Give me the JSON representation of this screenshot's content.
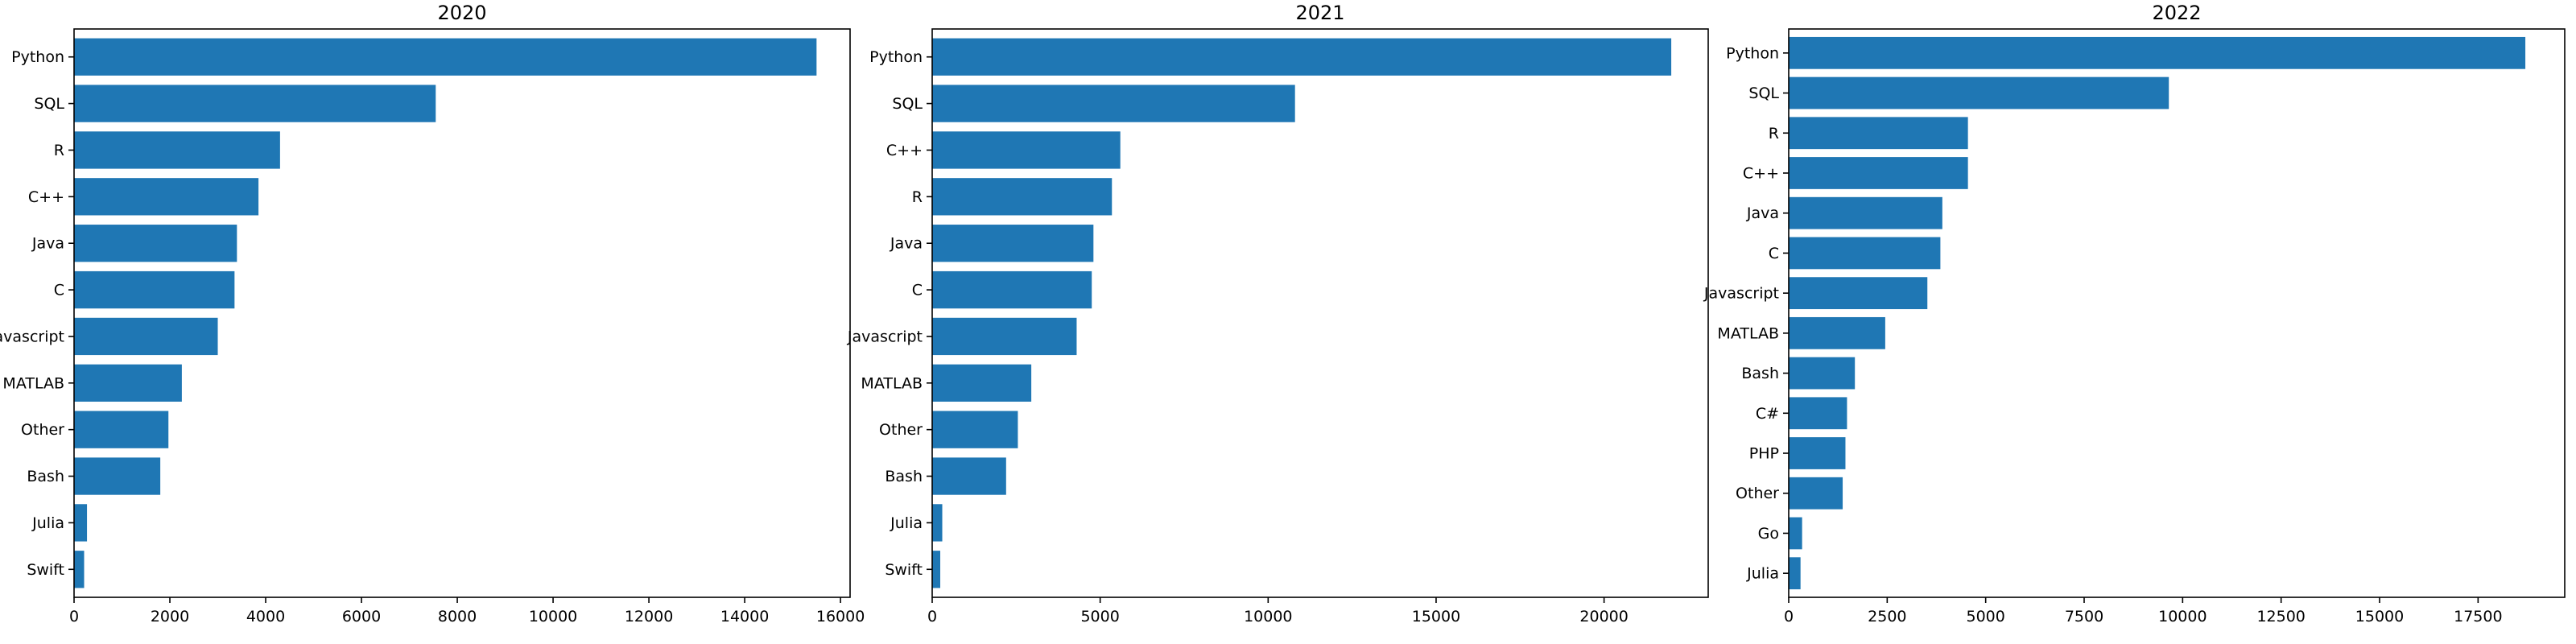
{
  "chart_data": [
    {
      "type": "bar",
      "orientation": "horizontal",
      "title": "2020",
      "categories": [
        "Python",
        "SQL",
        "R",
        "C++",
        "Java",
        "C",
        "Javascript",
        "MATLAB",
        "Other",
        "Bash",
        "Julia",
        "Swift"
      ],
      "values": [
        15500,
        7550,
        4300,
        3850,
        3400,
        3350,
        3000,
        2250,
        1970,
        1800,
        270,
        210
      ],
      "xlim": [
        0,
        16200
      ],
      "xticks": [
        0,
        2000,
        4000,
        6000,
        8000,
        10000,
        12000,
        14000,
        16000
      ],
      "xtick_labels": [
        "0",
        "2000",
        "4000",
        "6000",
        "8000",
        "10000",
        "12000",
        "14000",
        "16000"
      ],
      "bar_color": "#1f77b4",
      "grid": false
    },
    {
      "type": "bar",
      "orientation": "horizontal",
      "title": "2021",
      "categories": [
        "Python",
        "SQL",
        "C++",
        "R",
        "Java",
        "C",
        "Javascript",
        "MATLAB",
        "Other",
        "Bash",
        "Julia",
        "Swift"
      ],
      "values": [
        22000,
        10800,
        5600,
        5350,
        4800,
        4750,
        4300,
        2950,
        2550,
        2200,
        300,
        240
      ],
      "xlim": [
        0,
        23100
      ],
      "xticks": [
        0,
        5000,
        10000,
        15000,
        20000
      ],
      "xtick_labels": [
        "0",
        "5000",
        "10000",
        "15000",
        "20000"
      ],
      "bar_color": "#1f77b4",
      "grid": false
    },
    {
      "type": "bar",
      "orientation": "horizontal",
      "title": "2022",
      "categories": [
        "Python",
        "SQL",
        "R",
        "C++",
        "Java",
        "C",
        "Javascript",
        "MATLAB",
        "Bash",
        "C#",
        "PHP",
        "Other",
        "Go",
        "Julia"
      ],
      "values": [
        18700,
        9650,
        4550,
        4550,
        3900,
        3850,
        3520,
        2450,
        1680,
        1480,
        1440,
        1370,
        340,
        300
      ],
      "xlim": [
        0,
        19700
      ],
      "xticks": [
        0,
        2500,
        5000,
        7500,
        10000,
        12500,
        15000,
        17500
      ],
      "xtick_labels": [
        "0",
        "2500",
        "5000",
        "7500",
        "10000",
        "12500",
        "15000",
        "17500"
      ],
      "bar_color": "#1f77b4",
      "grid": false
    }
  ]
}
